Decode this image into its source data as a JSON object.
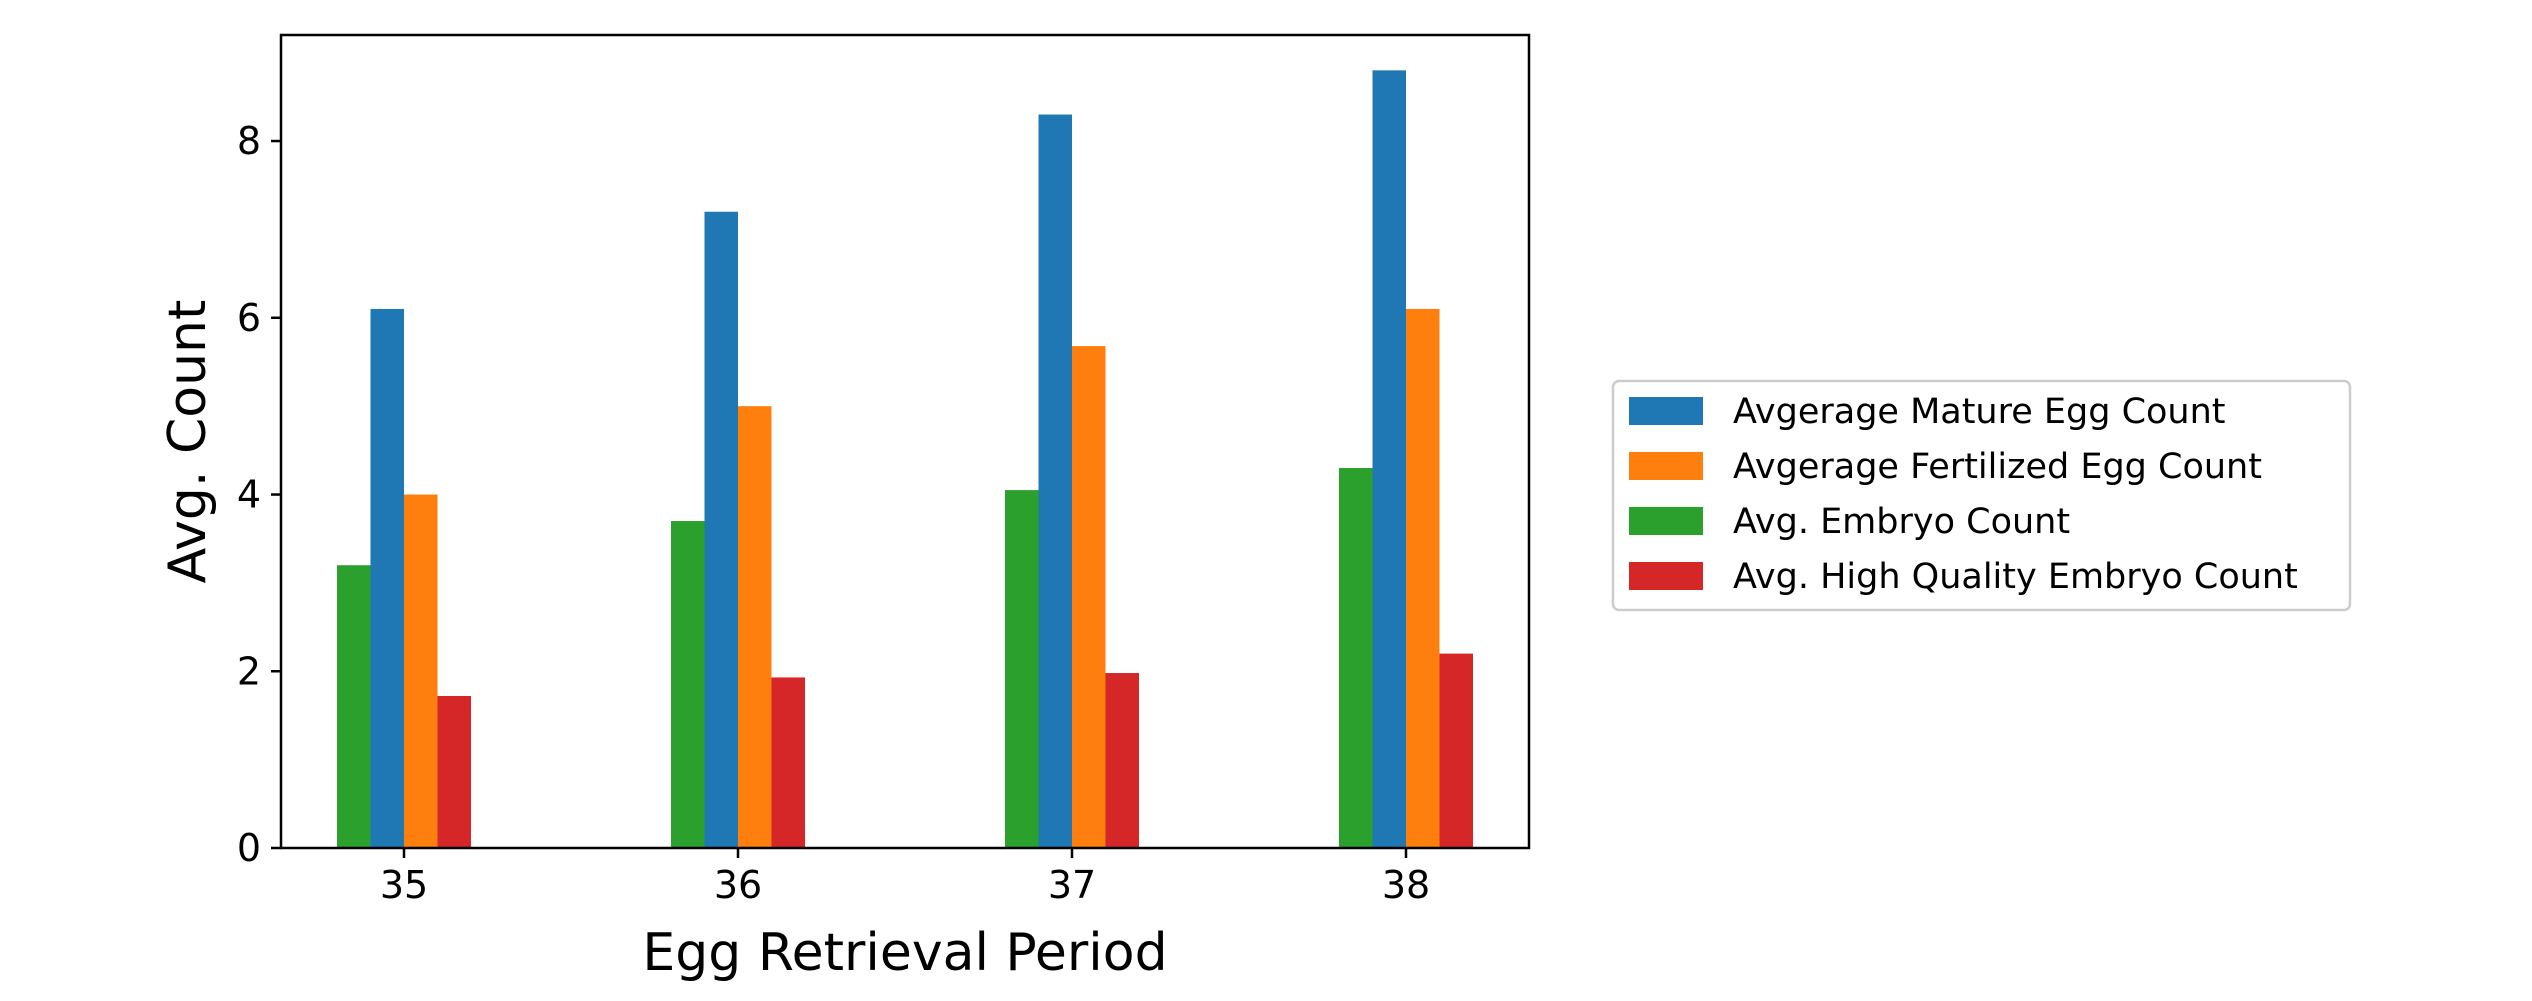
{
  "chart_data": {
    "type": "bar",
    "title": "",
    "xlabel": "Egg Retrieval Period",
    "ylabel": "Avg. Count",
    "categories": [
      "35",
      "36",
      "37",
      "38"
    ],
    "ylim": [
      0,
      9.2
    ],
    "yticks": [
      "0",
      "2",
      "4",
      "6",
      "8"
    ],
    "grid": false,
    "legend_placement": "center-right, outside plot",
    "series": [
      {
        "name": "Avg. Embryo Count",
        "color": "#2ca02c",
        "values": [
          3.2,
          3.7,
          4.05,
          4.3
        ]
      },
      {
        "name": "Avgerage Mature Egg Count",
        "color": "#1f77b4",
        "values": [
          6.1,
          7.2,
          8.3,
          8.8
        ]
      },
      {
        "name": "Avgerage Fertilized Egg Count",
        "color": "#ff7f0e",
        "values": [
          4.0,
          5.0,
          5.68,
          6.1
        ]
      },
      {
        "name": "Avg. High Quality Embryo Count",
        "color": "#d62728",
        "values": [
          1.72,
          1.93,
          1.98,
          2.2
        ]
      }
    ],
    "legend_order": [
      "Avgerage Mature Egg Count",
      "Avgerage Fertilized Egg Count",
      "Avg. Embryo Count",
      "Avg. High Quality Embryo Count"
    ]
  }
}
